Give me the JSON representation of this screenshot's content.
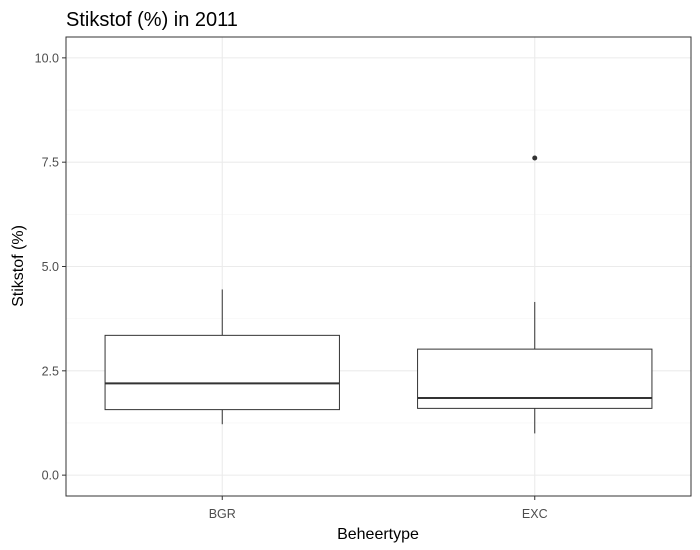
{
  "chart_data": {
    "type": "boxplot",
    "title": "Stikstof (%) in 2011",
    "xlabel": "Beheertype",
    "ylabel": "Stikstof (%)",
    "categories": [
      "BGR",
      "EXC"
    ],
    "boxes": [
      {
        "category": "BGR",
        "whisker_low": 1.22,
        "q1": 1.57,
        "median": 2.2,
        "q3": 3.35,
        "whisker_high": 4.45,
        "outliers": []
      },
      {
        "category": "EXC",
        "whisker_low": 1.0,
        "q1": 1.6,
        "median": 1.85,
        "q3": 3.02,
        "whisker_high": 4.15,
        "outliers": [
          7.6
        ]
      }
    ],
    "ylim": [
      -0.5,
      10.5
    ],
    "yticks": [
      {
        "value": 0.0,
        "label": "0.0"
      },
      {
        "value": 2.5,
        "label": "2.5"
      },
      {
        "value": 5.0,
        "label": "5.0"
      },
      {
        "value": 7.5,
        "label": "7.5"
      },
      {
        "value": 10.0,
        "label": "10.0"
      }
    ],
    "grid": true,
    "colors": {
      "box_fill": "#ffffff",
      "box_stroke": "#333333",
      "grid_major": "#ebebeb",
      "grid_minor": "#f5f5f5",
      "panel_border": "#333333",
      "outlier": "#333333"
    }
  }
}
